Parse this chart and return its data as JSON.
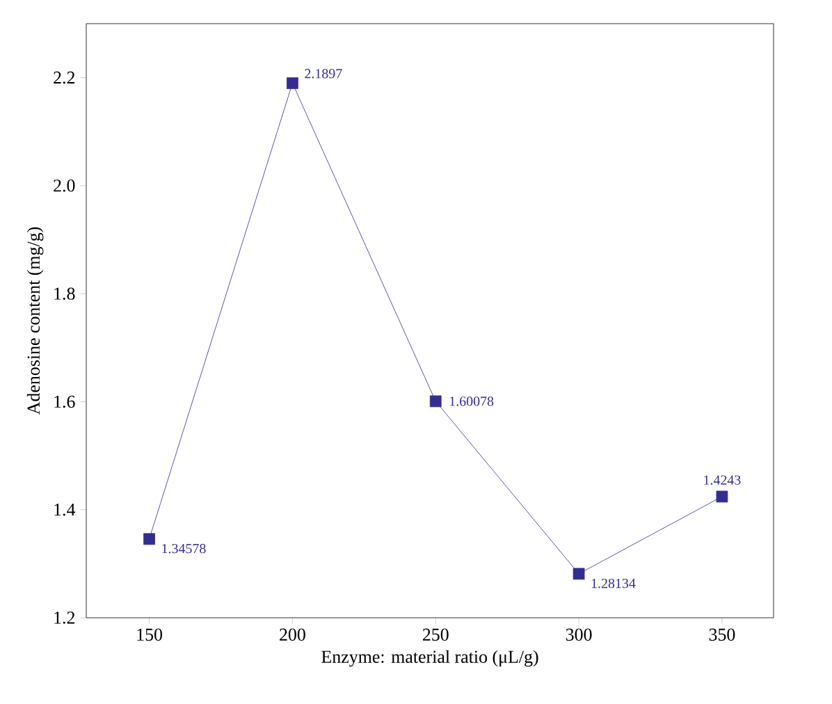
{
  "chart_data": {
    "type": "line",
    "xlabel": "Enzyme: material ratio (μL/g)",
    "ylabel": "Adenosine content (mg/g)",
    "x": [
      150,
      200,
      250,
      300,
      350
    ],
    "values": [
      1.34578,
      2.1897,
      1.60078,
      1.28134,
      1.4243
    ],
    "color": "#332d8f",
    "marker": "square",
    "line_style": "solid",
    "data_labels": true,
    "grid": false,
    "xlim": [
      128,
      368
    ],
    "ylim": [
      1.2,
      2.3
    ],
    "xticks": [
      150,
      200,
      250,
      300,
      350
    ],
    "yticks": [
      1.2,
      1.4,
      1.6,
      1.8,
      {
        "value": 2,
        "label": "2.0"
      },
      2.2
    ]
  }
}
